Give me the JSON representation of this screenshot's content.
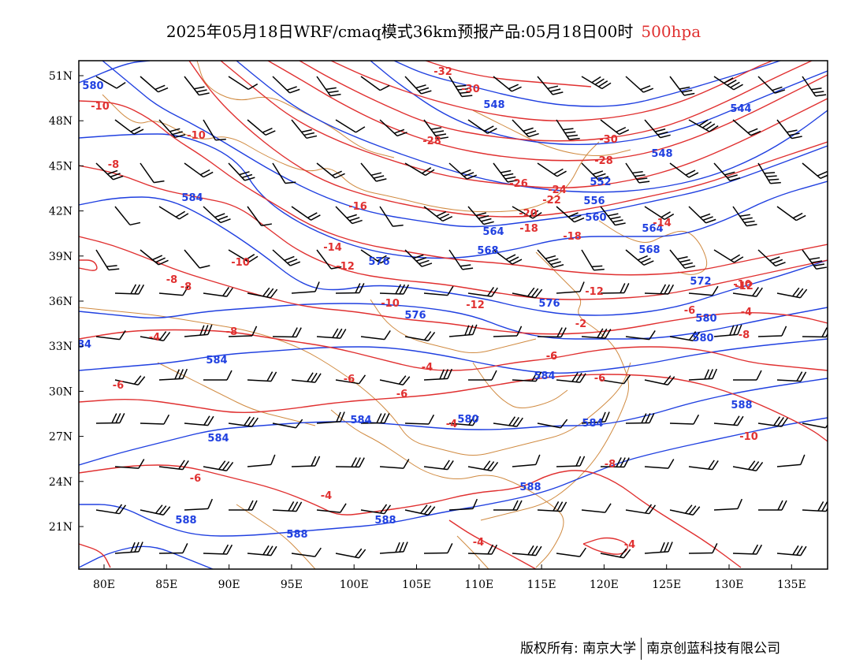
{
  "title": {
    "main": "2025年05月18日WRF/cmaq模式36km预报产品:05月18日00时",
    "level": "500hpa"
  },
  "map": {
    "lat_labels": [
      "51N",
      "48N",
      "45N",
      "42N",
      "39N",
      "36N",
      "33N",
      "30N",
      "27N",
      "24N",
      "21N"
    ],
    "lon_labels": [
      "80E",
      "85E",
      "90E",
      "95E",
      "100E",
      "105E",
      "110E",
      "115E",
      "120E",
      "125E",
      "130E",
      "135E"
    ],
    "colors": {
      "height_contour": "#2040e0",
      "temperature_contour": "#e03030",
      "boundary": "#d08a40",
      "wind_barb": "#000000",
      "frame": "#000000"
    },
    "height_labels": [
      "580",
      "548",
      "544",
      "548",
      "584",
      "552",
      "556",
      "560",
      "564",
      "564",
      "568",
      "568",
      "576",
      "572",
      "576",
      "580",
      "576",
      "580",
      "584",
      "584",
      "580",
      "584",
      "584",
      "584",
      "588",
      "588",
      "588",
      "588",
      "588",
      "84"
    ],
    "temperature_labels": [
      "-32",
      "-30",
      "-10",
      "-10",
      "-8",
      "-28",
      "-30",
      "-28",
      "-26",
      "-24",
      "-22",
      "-20",
      "-18",
      "-16",
      "-18",
      "-14",
      "-14",
      "-10",
      "-12",
      "-8",
      "-8",
      "-12",
      "-12",
      "-10",
      "-10",
      "-4",
      "-6",
      "-6",
      "-6",
      "-8",
      "-6",
      "-8",
      "-6",
      "-6",
      "-4",
      "-4",
      "-4",
      "-4",
      "-8",
      "-6",
      "-4",
      "-10",
      "-4",
      "-2",
      "-12",
      "-6"
    ]
  },
  "footer": {
    "copyright_label": "版权所有:",
    "owner_1": "南京大学",
    "owner_2": "南京创蓝科技有限公司"
  }
}
